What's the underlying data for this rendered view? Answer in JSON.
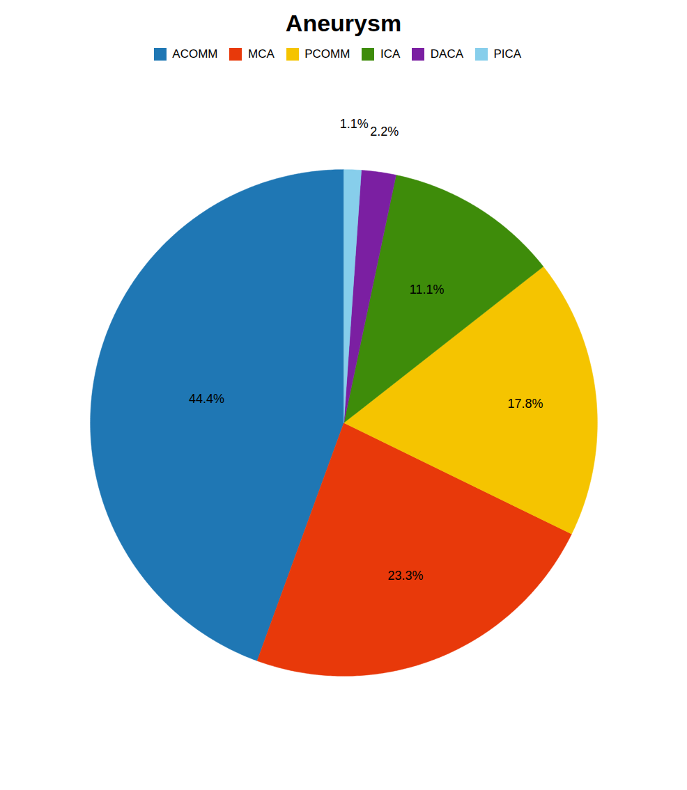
{
  "chart_data": {
    "type": "pie",
    "title": "Aneurysm",
    "categories": [
      "ACOMM",
      "MCA",
      "PCOMM",
      "ICA",
      "DACA",
      "PICA"
    ],
    "values": [
      44.4,
      23.3,
      17.8,
      11.1,
      2.2,
      1.1
    ],
    "value_labels": [
      "44.4%",
      "23.3%",
      "17.8%",
      "11.1%",
      "2.2%",
      "1.1%"
    ],
    "colors": [
      "#1f77b4",
      "#e8390a",
      "#f5c400",
      "#3e8c0a",
      "#7b1fa2",
      "#87ceeb"
    ],
    "data_labels": true,
    "legend": "top"
  }
}
